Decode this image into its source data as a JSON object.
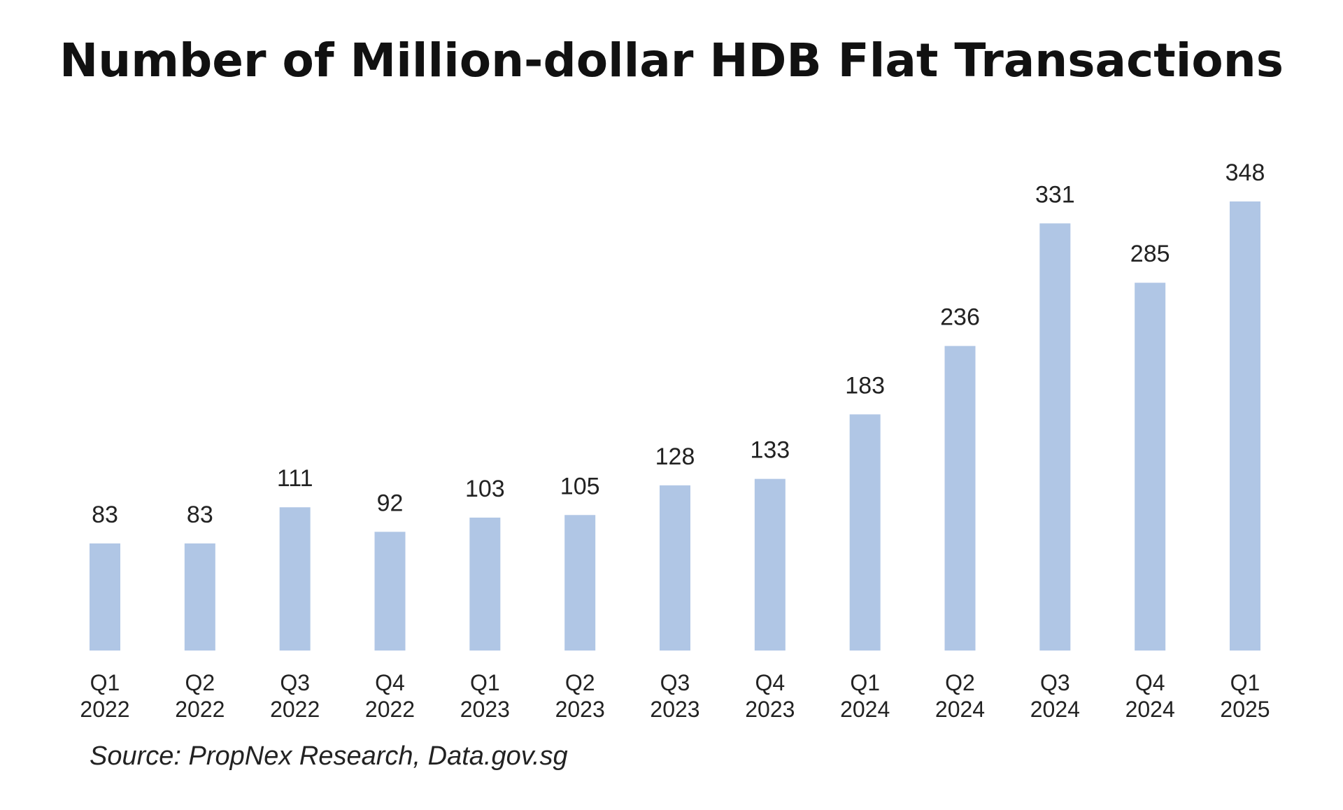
{
  "chart_data": {
    "type": "bar",
    "title": "Number of Million-dollar HDB Flat Transactions",
    "categories": [
      [
        "Q1",
        "2022"
      ],
      [
        "Q2",
        "2022"
      ],
      [
        "Q3",
        "2022"
      ],
      [
        "Q4",
        "2022"
      ],
      [
        "Q1",
        "2023"
      ],
      [
        "Q2",
        "2023"
      ],
      [
        "Q3",
        "2023"
      ],
      [
        "Q4",
        "2023"
      ],
      [
        "Q1",
        "2024"
      ],
      [
        "Q2",
        "2024"
      ],
      [
        "Q3",
        "2024"
      ],
      [
        "Q4",
        "2024"
      ],
      [
        "Q1",
        "2025"
      ]
    ],
    "values": [
      83,
      83,
      111,
      92,
      103,
      105,
      128,
      133,
      183,
      236,
      331,
      285,
      348
    ],
    "data_labels": [
      "83",
      "83",
      "111",
      "92",
      "103",
      "105",
      "128",
      "133",
      "183",
      "236",
      "331",
      "285",
      "348"
    ],
    "xlabel": "",
    "ylabel": "",
    "ylim": [
      0,
      348
    ],
    "grid": false,
    "legend": "none",
    "bar_color": "#b0c6e5",
    "source": "Source: PropNex Research, Data.gov.sg"
  }
}
